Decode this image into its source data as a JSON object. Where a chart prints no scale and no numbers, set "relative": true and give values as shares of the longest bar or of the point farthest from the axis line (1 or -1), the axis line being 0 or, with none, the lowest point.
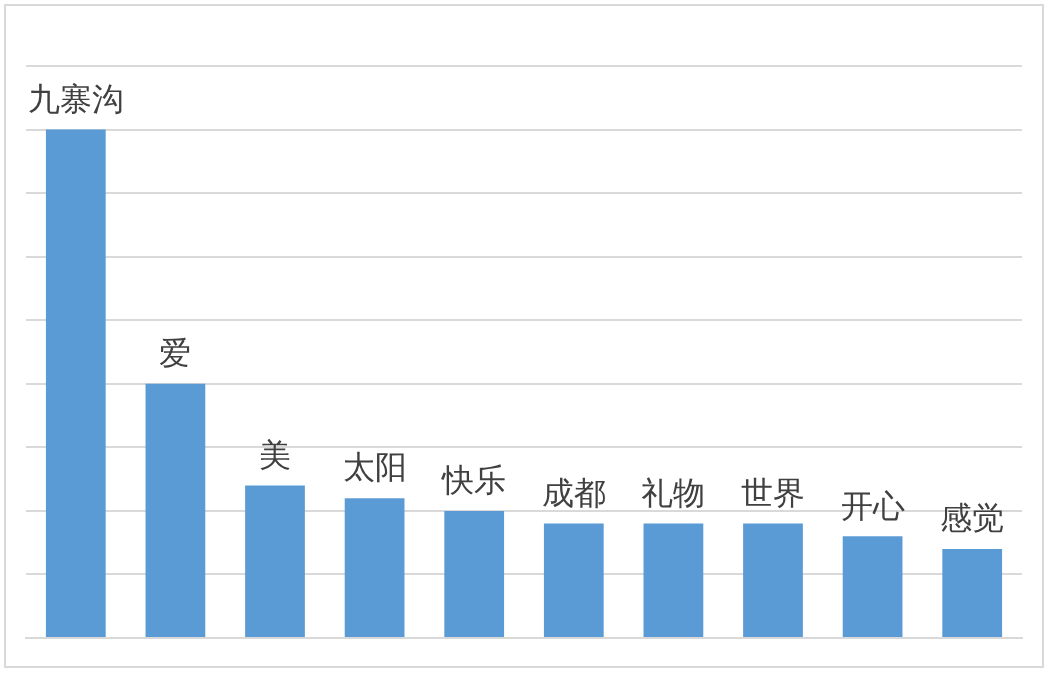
{
  "chart_data": {
    "type": "bar",
    "relative": true,
    "categories": [
      "九寨沟",
      "爱",
      "美",
      "太阳",
      "快乐",
      "成都",
      "礼物",
      "世界",
      "开心",
      "感觉"
    ],
    "values": [
      1,
      0.5,
      0.3,
      0.275,
      0.25,
      0.225,
      0.225,
      0.225,
      0.2,
      0.175
    ],
    "color": "#5b9bd5",
    "grid": "y",
    "legend": false
  }
}
